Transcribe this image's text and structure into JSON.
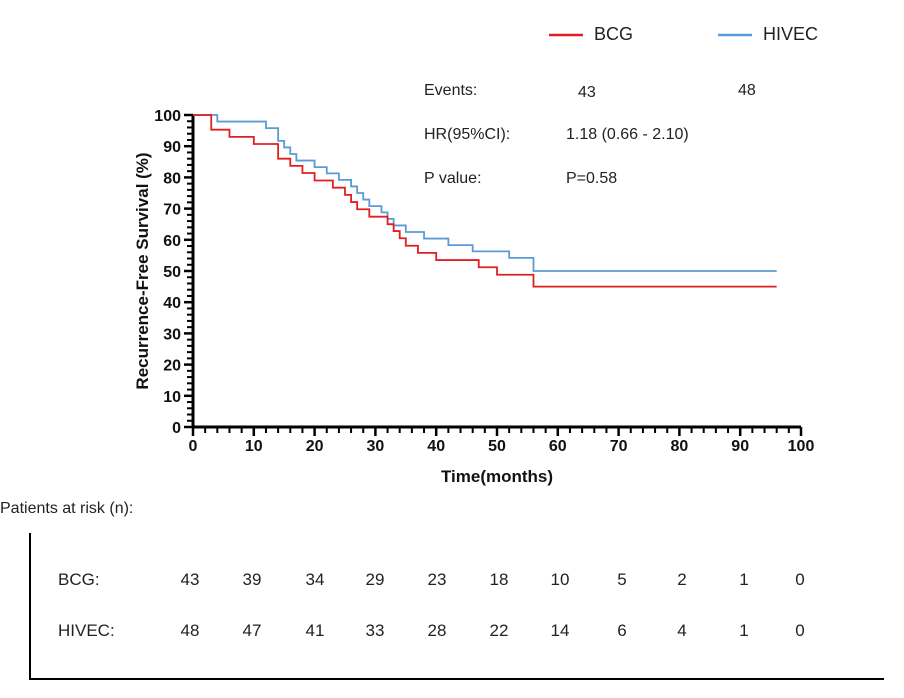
{
  "chart_data": {
    "type": "line",
    "subtype": "kaplan-meier-step",
    "xlabel": "Time(months)",
    "ylabel": "Recurrence-Free Survival (%)",
    "xlim": [
      0,
      100
    ],
    "ylim": [
      0,
      100
    ],
    "xticks": [
      0,
      10,
      20,
      30,
      40,
      50,
      60,
      70,
      80,
      90,
      100
    ],
    "yticks": [
      0,
      10,
      20,
      30,
      40,
      50,
      60,
      70,
      80,
      90,
      100
    ],
    "legend_position": "top-right",
    "grid": false,
    "series": [
      {
        "name": "BCG",
        "color": "#e02020",
        "x": [
          0,
          2.5,
          3,
          6,
          10,
          14,
          16,
          18,
          20,
          23,
          25,
          26,
          27,
          28,
          29,
          30,
          32,
          33,
          34,
          35,
          36,
          37,
          38,
          40,
          42,
          47,
          50,
          56,
          96
        ],
        "y": [
          100,
          100,
          95.3,
          93,
          90.7,
          86,
          83.7,
          81.4,
          79,
          76.7,
          74.4,
          72.1,
          69.8,
          69.8,
          67.4,
          67.4,
          65,
          62.8,
          60.5,
          58.1,
          58.1,
          55.8,
          55.8,
          53.5,
          53.5,
          51.2,
          48.8,
          45,
          45
        ]
      },
      {
        "name": "HIVEC",
        "color": "#5b9bd5",
        "x": [
          0,
          2,
          4,
          6,
          12,
          14,
          15,
          16,
          17,
          20,
          22,
          24,
          26,
          27,
          28,
          29,
          31,
          32,
          33,
          35,
          37,
          38,
          39,
          42,
          46,
          52,
          56,
          96
        ],
        "y": [
          100,
          100,
          97.9,
          97.9,
          95.8,
          91.7,
          89.6,
          87.5,
          85.4,
          83.3,
          81.3,
          79.2,
          77.1,
          75,
          72.9,
          70.8,
          68.8,
          66.7,
          64.6,
          62.5,
          62.5,
          60.4,
          60.4,
          58.3,
          56.3,
          54.2,
          50,
          50
        ]
      }
    ]
  },
  "legend": [
    {
      "label": "BCG",
      "color": "#e02020"
    },
    {
      "label": "HIVEC",
      "color": "#5b9bd5"
    }
  ],
  "stats": {
    "events_label": "Events:",
    "events_bcg": "43",
    "events_hivec": "48",
    "hr_label": "HR(95%CI):",
    "hr_value": "1.18 (0.66 - 2.10)",
    "p_label": "P value:",
    "p_value": "P=0.58"
  },
  "risk_table": {
    "title": "Patients at risk (n):",
    "times": [
      0,
      10,
      20,
      30,
      40,
      50,
      60,
      70,
      80,
      90,
      100
    ],
    "rows": [
      {
        "label": "BCG:",
        "values": [
          "43",
          "39",
          "34",
          "29",
          "23",
          "18",
          "10",
          "5",
          "2",
          "1",
          "0"
        ]
      },
      {
        "label": "HIVEC:",
        "values": [
          "48",
          "47",
          "41",
          "33",
          "28",
          "22",
          "14",
          "6",
          "4",
          "1",
          "0"
        ]
      }
    ]
  }
}
